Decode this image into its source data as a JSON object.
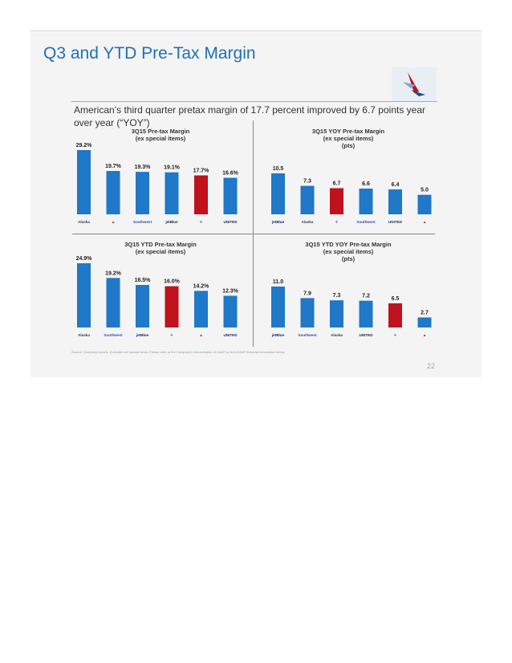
{
  "slide": {
    "title": "Q3 and YTD Pre-Tax Margin",
    "subtitle": "American’s third quarter pretax margin of 17.7 percent improved by 6.7 points year over year (“YOY”)",
    "source": "Source: Company reports. Excludes net special items. Please refer to the Company’s reconciliation of GAAP to Non-GAAP financial information below.",
    "page_number": "22"
  },
  "colors": {
    "bar": "#1f78c8",
    "highlight": "#c0121c",
    "title": "#1f6fb7"
  },
  "chart_data": [
    {
      "type": "bar",
      "title": "3Q15 Pre-tax Margin\n(ex special items)",
      "categories": [
        "Alaska",
        "Delta",
        "Southwest",
        "jetBlue",
        "American",
        "United"
      ],
      "values": [
        29.2,
        19.7,
        19.3,
        19.1,
        17.7,
        16.6
      ],
      "labels": [
        "29.2%",
        "19.7%",
        "19.3%",
        "19.1%",
        "17.7%",
        "16.6%"
      ],
      "highlight": "American"
    },
    {
      "type": "bar",
      "title": "3Q15 YOY Pre-tax Margin\n(ex special items)\n(pts)",
      "categories": [
        "jetBlue",
        "Alaska",
        "American",
        "Southwest",
        "United",
        "Delta"
      ],
      "values": [
        10.5,
        7.3,
        6.7,
        6.6,
        6.4,
        5.0
      ],
      "labels": [
        "10.5",
        "7.3",
        "6.7",
        "6.6",
        "6.4",
        "5.0"
      ],
      "highlight": "American"
    },
    {
      "type": "bar",
      "title": "3Q15 YTD Pre-tax Margin\n(ex special items)",
      "categories": [
        "Alaska",
        "Southwest",
        "jetBlue",
        "American",
        "Delta",
        "United"
      ],
      "values": [
        24.9,
        19.2,
        16.5,
        16.0,
        14.2,
        12.3
      ],
      "labels": [
        "24.9%",
        "19.2%",
        "16.5%",
        "16.0%",
        "14.2%",
        "12.3%"
      ],
      "highlight": "American"
    },
    {
      "type": "bar",
      "title": "3Q15 YTD YOY Pre-tax Margin\n(ex special items)\n(pts)",
      "categories": [
        "jetBlue",
        "Southwest",
        "Alaska",
        "United",
        "American",
        "Delta"
      ],
      "values": [
        11.0,
        7.9,
        7.3,
        7.2,
        6.5,
        2.7
      ],
      "labels": [
        "11.0",
        "7.9",
        "7.3",
        "7.2",
        "6.5",
        "2.7"
      ],
      "highlight": "American"
    }
  ],
  "airline_marks": {
    "Alaska": {
      "text": "Alaska",
      "color": "#1a3a5c"
    },
    "Delta": {
      "text": "▲",
      "color": "#c0121c"
    },
    "Southwest": {
      "text": "Southwest",
      "color": "#304cb2"
    },
    "jetBlue": {
      "text": "jetBlue",
      "color": "#0a2a6b"
    },
    "American": {
      "text": "✈",
      "color": "#5a7da8"
    },
    "United": {
      "text": "UNITED",
      "color": "#1a2a5c"
    }
  }
}
